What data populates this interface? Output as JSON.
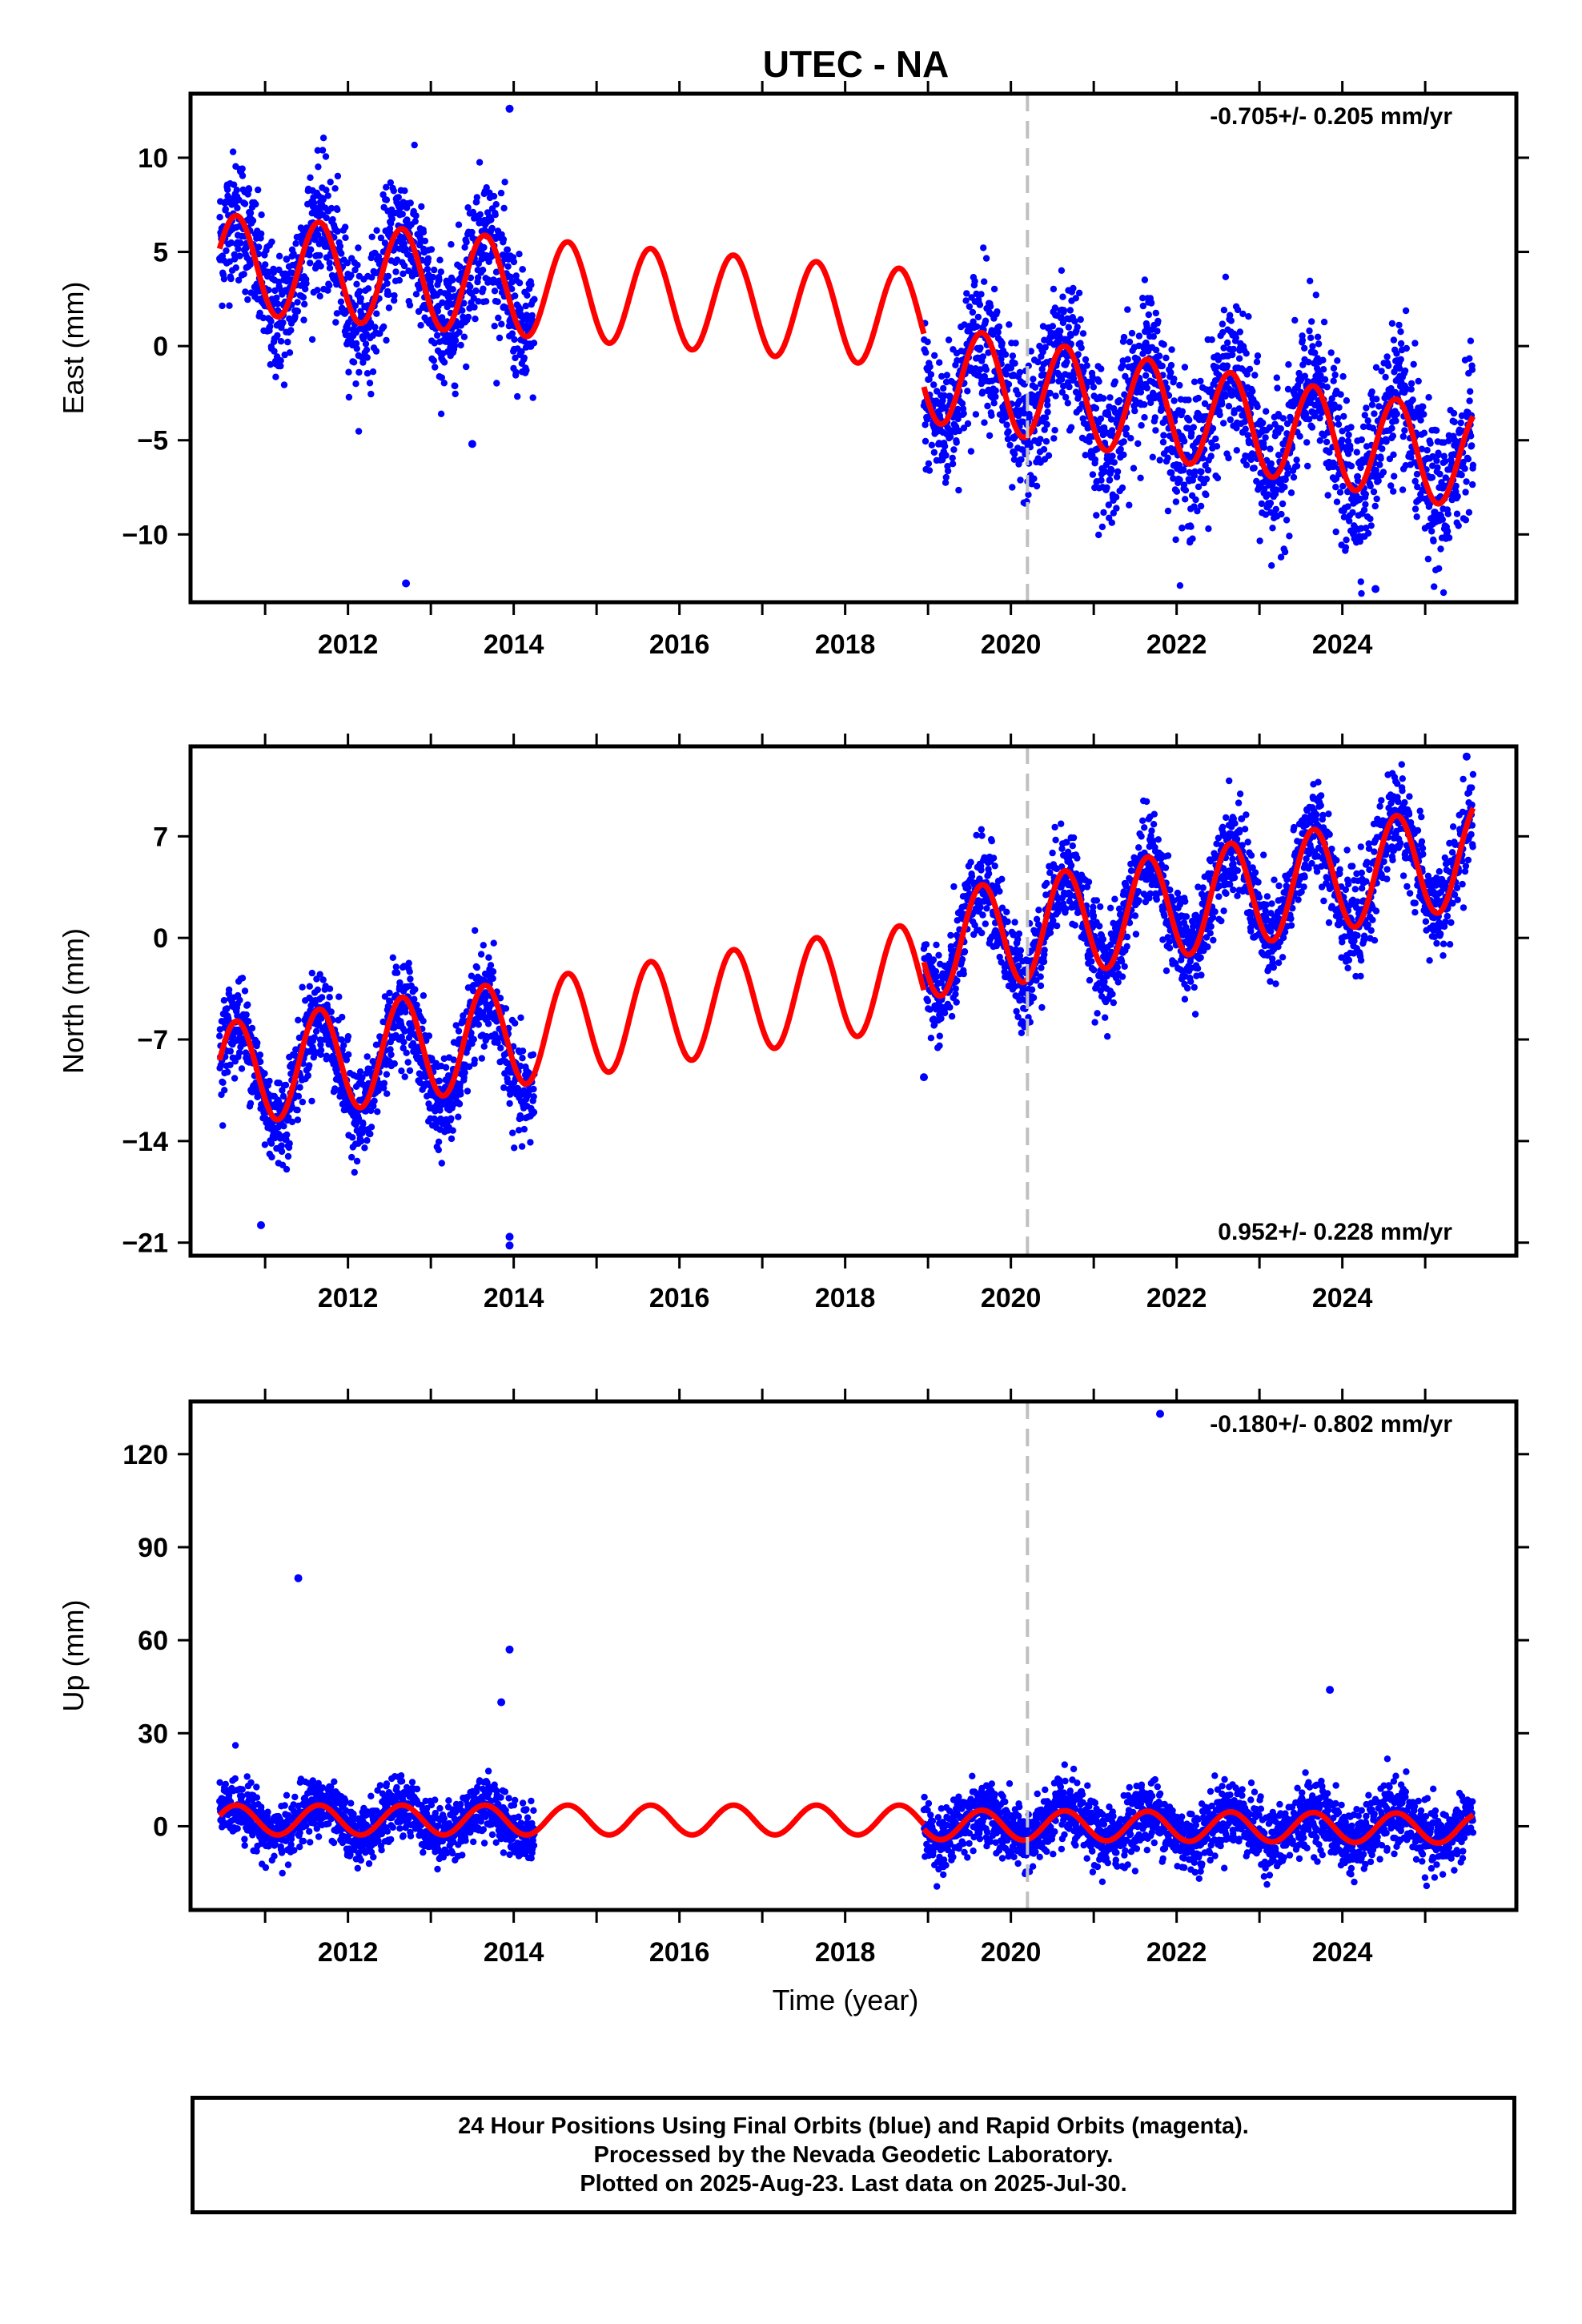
{
  "chart_data": {
    "type": "scatter",
    "title": "UTEC - NA",
    "xlabel": "Time (year)",
    "x_ticks": [
      2012,
      2014,
      2016,
      2018,
      2020,
      2022,
      2024
    ],
    "xlim": [
      2010.1,
      2026.1
    ],
    "vertical_line_x": 2020.2,
    "colors": {
      "data_points": "#0000ff",
      "model_line": "#ff0000",
      "vertical_line": "#c0c0c0",
      "frame": "#000000"
    },
    "panels": [
      {
        "name": "East",
        "ylabel": "East (mm)",
        "ylim": [
          -13.6,
          13.4
        ],
        "y_ticks": [
          10,
          5,
          0,
          -5,
          -10
        ],
        "rate_label": "-0.705+/- 0.205 mm/yr",
        "rate_position": "top-right",
        "model": {
          "amplitude": 2.6,
          "series_name": "model fit"
        },
        "segments": [
          {
            "start": 2010.45,
            "end": 2014.25,
            "offset": 4.4,
            "rate": -0.35,
            "spread": 1.7
          },
          {
            "start": 2018.95,
            "end": 2025.58,
            "offset": -1.4,
            "rate": -0.705,
            "spread": 1.9
          }
        ],
        "model_offsets": [
          {
            "start": 2010.45,
            "end": 2018.95,
            "value": 4.4,
            "rate": -0.35
          },
          {
            "start": 2018.95,
            "end": 2025.58,
            "value": -1.4,
            "rate": -0.705
          }
        ],
        "outliers": [
          [
            2012.7,
            -12.6
          ],
          [
            2013.95,
            12.6
          ],
          [
            2024.4,
            -12.9
          ],
          [
            2013.5,
            -5.2
          ]
        ]
      },
      {
        "name": "North",
        "ylabel": "North (mm)",
        "ylim": [
          -21.9,
          13.2
        ],
        "y_ticks": [
          7,
          0,
          -7,
          -14,
          -21
        ],
        "rate_label": "0.952+/- 0.228 mm/yr",
        "rate_position": "bottom-right",
        "model": {
          "amplitude": 3.6
        },
        "segments": [
          {
            "start": 2010.45,
            "end": 2014.25,
            "offset": -9.5,
            "rate": 0.55,
            "spread": 1.6
          },
          {
            "start": 2018.95,
            "end": 2025.58,
            "offset": -0.6,
            "rate": 0.952,
            "spread": 1.6
          }
        ],
        "model_offsets": [
          {
            "start": 2010.45,
            "end": 2018.95,
            "value": -9.5,
            "rate": 0.82
          },
          {
            "start": 2018.95,
            "end": 2025.58,
            "value": -0.6,
            "rate": 0.952
          }
        ],
        "outliers": [
          [
            2010.95,
            -19.8
          ],
          [
            2013.95,
            -20.6
          ],
          [
            2013.95,
            -21.2
          ],
          [
            2018.95,
            -9.6
          ],
          [
            2025.5,
            12.5
          ]
        ]
      },
      {
        "name": "Up",
        "ylabel": "Up (mm)",
        "ylim": [
          -27,
          137
        ],
        "y_ticks": [
          120,
          90,
          60,
          30,
          0
        ],
        "rate_label": "-0.180+/- 0.802 mm/yr",
        "rate_position": "top-right",
        "model": {
          "amplitude": 4.8
        },
        "segments": [
          {
            "start": 2010.45,
            "end": 2014.25,
            "offset": 2.0,
            "rate": 0.0,
            "spread": 4.5
          },
          {
            "start": 2018.95,
            "end": 2025.58,
            "offset": 0.5,
            "rate": -0.18,
            "spread": 5.2
          }
        ],
        "model_offsets": [
          {
            "start": 2010.45,
            "end": 2018.95,
            "value": 2.0,
            "rate": 0.0
          },
          {
            "start": 2018.95,
            "end": 2025.58,
            "value": 0.5,
            "rate": -0.18
          }
        ],
        "outliers": [
          [
            2011.4,
            80
          ],
          [
            2013.95,
            57
          ],
          [
            2013.85,
            40
          ],
          [
            2023.85,
            44
          ],
          [
            2021.8,
            133
          ]
        ]
      }
    ]
  },
  "footer": {
    "line1": "24 Hour Positions Using Final Orbits (blue) and Rapid Orbits (magenta).",
    "line2": "Processed by the Nevada Geodetic Laboratory.",
    "line3": "Plotted on 2025-Aug-23. Last data on 2025-Jul-30."
  }
}
